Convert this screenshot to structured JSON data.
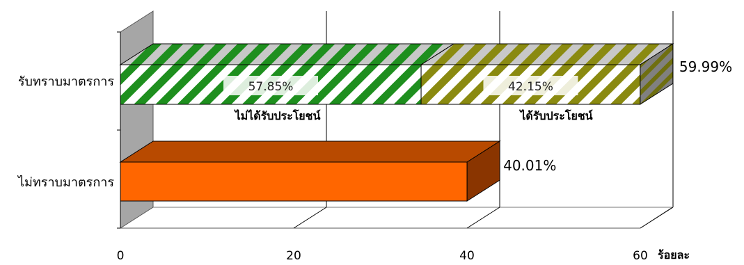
{
  "chart_data": {
    "type": "bar",
    "orientation": "horizontal",
    "stacked_3d": true,
    "categories": [
      "รับทราบมาตรการ",
      "ไม่ทราบมาตรการ"
    ],
    "values": [
      59.99,
      40.01
    ],
    "value_labels": [
      "59.99%",
      "40.01%"
    ],
    "breakdown": {
      "category": "รับทราบมาตรการ",
      "segments": [
        {
          "name": "ไม่ได้รับประโยชน์",
          "share_percent": 57.85,
          "label": "57.85%",
          "color": "#1e8f1e"
        },
        {
          "name": "ได้รับประโยชน์",
          "share_percent": 42.15,
          "label": "42.15%",
          "color": "#8a8a10"
        }
      ]
    },
    "bar_colors": {
      "aware": "#1e8f1e",
      "unaware": "#ff6600"
    },
    "xlabel": "ร้อยละ",
    "xticks": [
      0,
      20,
      40,
      60
    ],
    "xlim": [
      0,
      60
    ],
    "grid": true
  }
}
